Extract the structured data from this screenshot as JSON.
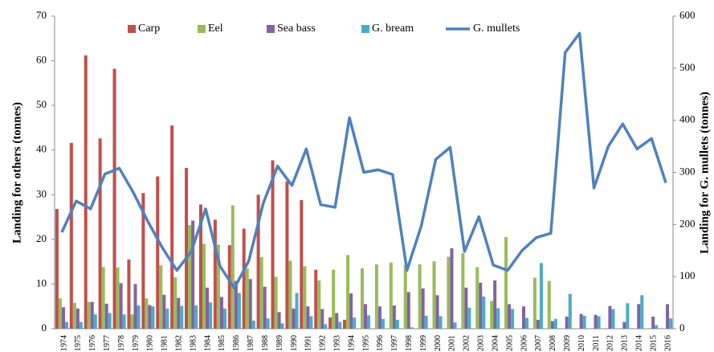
{
  "chart_data": {
    "type": "bar-line",
    "y_label": "Landing  for others (tonnes)",
    "y2_label": "Landing  for  G. mullets  (tonnes)",
    "categories": [
      "1974",
      "1975",
      "1976",
      "1977",
      "1978",
      "1979",
      "1980",
      "1981",
      "1982",
      "1983",
      "1984",
      "1985",
      "1986",
      "1987",
      "1988",
      "1989",
      "1990",
      "1991",
      "1992",
      "1993",
      "1994",
      "1995",
      "1996",
      "1997",
      "1998",
      "1999",
      "2000",
      "2001",
      "2002",
      "2003",
      "2004",
      "2005",
      "2006",
      "2007",
      "2008",
      "2009",
      "2010",
      "2011",
      "2012",
      "2013",
      "2014",
      "2015",
      "2016"
    ],
    "ylim": [
      0,
      70
    ],
    "yticks": [
      0,
      10,
      20,
      30,
      40,
      50,
      60,
      70
    ],
    "y2lim": [
      0,
      600
    ],
    "y2ticks": [
      0,
      100,
      200,
      300,
      400,
      500,
      600
    ],
    "series": [
      {
        "name": "Carp",
        "color": "#c0504d",
        "type": "bar",
        "values": [
          26.8,
          41.6,
          61.2,
          42.6,
          58.2,
          15.5,
          30.4,
          34.1,
          45.5,
          36,
          27.8,
          24.4,
          18.7,
          22.4,
          30,
          37.7,
          33,
          28.8,
          13.2,
          2.5,
          2,
          0,
          0,
          0,
          0,
          0,
          0,
          0,
          0,
          0,
          0,
          0,
          0,
          0,
          0,
          0,
          0,
          0,
          0,
          0,
          0,
          0,
          0
        ]
      },
      {
        "name": "Eel",
        "color": "#9bbb59",
        "type": "bar",
        "values": [
          6.8,
          5.8,
          6,
          13.8,
          13.7,
          3.2,
          6.8,
          14.2,
          11.5,
          23.2,
          19,
          18.8,
          27.6,
          13.5,
          16,
          11.6,
          15.2,
          14,
          10.8,
          13.2,
          16.5,
          13.5,
          14.4,
          14.8,
          14.2,
          14.4,
          15.1,
          16.1,
          16.9,
          13.8,
          6.2,
          20.5,
          0,
          11.4,
          10.7,
          0,
          0,
          0,
          0,
          0,
          0,
          0,
          0
        ]
      },
      {
        "name": "Sea bass",
        "color": "#8064a2",
        "type": "bar",
        "values": [
          4.8,
          4.5,
          6,
          5.6,
          10.2,
          10,
          5.3,
          7.6,
          6.9,
          24.2,
          9.2,
          7.1,
          10.7,
          11.1,
          9.4,
          3.7,
          4.5,
          5,
          4.4,
          3.5,
          7.9,
          5.5,
          5,
          5.2,
          8.2,
          9,
          7.5,
          18,
          9.2,
          10.3,
          10.8,
          5.5,
          5,
          2,
          1.7,
          2.7,
          3.3,
          3.1,
          5.1,
          1.5,
          5.5,
          2.7,
          5.5
        ]
      },
      {
        "name": "G. bream",
        "color": "#4bacc6",
        "type": "bar",
        "values": [
          1.5,
          1.5,
          3.2,
          3.5,
          3.2,
          5.2,
          5,
          4.5,
          5.1,
          5.2,
          5.9,
          4.5,
          8,
          1.8,
          2.3,
          1.2,
          8,
          2.8,
          1,
          1.5,
          2.5,
          3,
          2.2,
          2,
          0.3,
          2.9,
          2.8,
          1.4,
          4.7,
          7.2,
          4.6,
          4.4,
          2.4,
          14.7,
          2.2,
          7.8,
          2.9,
          2.8,
          4.4,
          5.7,
          7.5,
          0.8,
          2.3
        ]
      },
      {
        "name": "G. mullets",
        "color": "#4f81bd",
        "type": "line",
        "axis": "y2",
        "values": [
          185,
          245,
          230,
          297,
          308,
          260,
          205,
          155,
          112,
          148,
          230,
          120,
          78,
          130,
          240,
          312,
          275,
          345,
          238,
          233,
          405,
          300,
          305,
          296,
          112,
          198,
          325,
          348,
          148,
          215,
          122,
          112,
          150,
          175,
          183,
          530,
          567,
          270,
          350,
          393,
          345,
          365,
          280
        ]
      }
    ]
  }
}
